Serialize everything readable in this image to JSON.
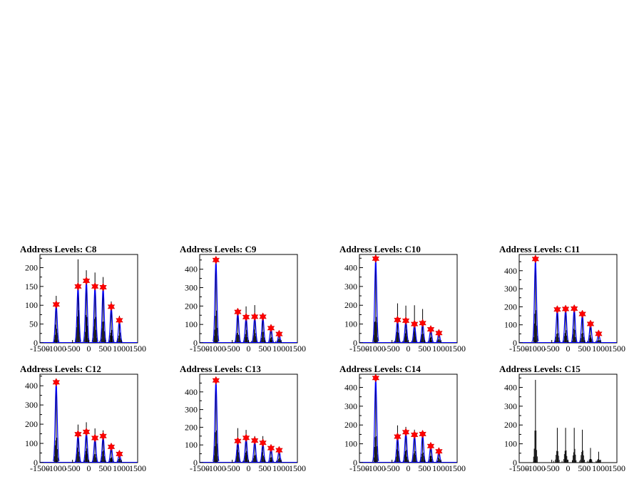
{
  "colors": {
    "histogram": "#000000",
    "background_fit": "#0000ff",
    "peak_marker": "#ff0000"
  },
  "chart_data": [
    {
      "type": "histogram",
      "title": "Address Levels: C8",
      "xlim": [
        -1500,
        1500
      ],
      "ylim": [
        0,
        235
      ],
      "xticks": [
        -1500,
        -1000,
        -500,
        0,
        500,
        1000,
        1500
      ],
      "yticks": [
        0,
        50,
        100,
        150,
        200
      ],
      "peaks": [
        {
          "x": -1000,
          "y": 102
        },
        {
          "x": -330,
          "y": 150
        },
        {
          "x": -75,
          "y": 165
        },
        {
          "x": 190,
          "y": 150
        },
        {
          "x": 440,
          "y": 148
        },
        {
          "x": 690,
          "y": 96
        },
        {
          "x": 940,
          "y": 60
        }
      ],
      "spikes": [
        {
          "x": -1000,
          "y": 125
        },
        {
          "x": -330,
          "y": 222
        },
        {
          "x": -75,
          "y": 193
        },
        {
          "x": 190,
          "y": 187
        },
        {
          "x": 440,
          "y": 175
        },
        {
          "x": 690,
          "y": 110
        },
        {
          "x": 940,
          "y": 72
        }
      ],
      "has_fit": true
    },
    {
      "type": "histogram",
      "title": "Address Levels: C9",
      "xlim": [
        -1500,
        1500
      ],
      "ylim": [
        0,
        480
      ],
      "xticks": [
        -1500,
        -1000,
        -500,
        0,
        500,
        1000,
        1500
      ],
      "yticks": [
        0,
        100,
        200,
        300,
        400
      ],
      "peaks": [
        {
          "x": -1000,
          "y": 450
        },
        {
          "x": -330,
          "y": 168
        },
        {
          "x": -75,
          "y": 140
        },
        {
          "x": 190,
          "y": 142
        },
        {
          "x": 440,
          "y": 142
        },
        {
          "x": 690,
          "y": 80
        },
        {
          "x": 940,
          "y": 48
        }
      ],
      "spikes": [
        {
          "x": -1000,
          "y": 458
        },
        {
          "x": -330,
          "y": 182
        },
        {
          "x": -75,
          "y": 198
        },
        {
          "x": 190,
          "y": 205
        },
        {
          "x": 440,
          "y": 160
        },
        {
          "x": 690,
          "y": 88
        },
        {
          "x": 940,
          "y": 58
        }
      ],
      "has_fit": true
    },
    {
      "type": "histogram",
      "title": "Address Levels: C10",
      "xlim": [
        -1500,
        1500
      ],
      "ylim": [
        0,
        470
      ],
      "xticks": [
        -1500,
        -1000,
        -500,
        0,
        500,
        1000,
        1500
      ],
      "yticks": [
        0,
        100,
        200,
        300,
        400
      ],
      "peaks": [
        {
          "x": -1000,
          "y": 448
        },
        {
          "x": -330,
          "y": 122
        },
        {
          "x": -75,
          "y": 118
        },
        {
          "x": 190,
          "y": 100
        },
        {
          "x": 440,
          "y": 105
        },
        {
          "x": 690,
          "y": 72
        },
        {
          "x": 940,
          "y": 52
        }
      ],
      "spikes": [
        {
          "x": -1000,
          "y": 455
        },
        {
          "x": -330,
          "y": 210
        },
        {
          "x": -75,
          "y": 198
        },
        {
          "x": 190,
          "y": 200
        },
        {
          "x": 440,
          "y": 180
        },
        {
          "x": 690,
          "y": 82
        },
        {
          "x": 940,
          "y": 60
        }
      ],
      "has_fit": true
    },
    {
      "type": "histogram",
      "title": "Address Levels: C11",
      "xlim": [
        -1500,
        1500
      ],
      "ylim": [
        0,
        490
      ],
      "xticks": [
        -1500,
        -1000,
        -500,
        0,
        500,
        1000,
        1500
      ],
      "yticks": [
        0,
        100,
        200,
        300,
        400
      ],
      "peaks": [
        {
          "x": -1000,
          "y": 465
        },
        {
          "x": -330,
          "y": 185
        },
        {
          "x": -75,
          "y": 188
        },
        {
          "x": 190,
          "y": 190
        },
        {
          "x": 440,
          "y": 160
        },
        {
          "x": 690,
          "y": 105
        },
        {
          "x": 940,
          "y": 50
        }
      ],
      "spikes": [
        {
          "x": -1000,
          "y": 472
        },
        {
          "x": -330,
          "y": 195
        },
        {
          "x": -75,
          "y": 198
        },
        {
          "x": 190,
          "y": 200
        },
        {
          "x": 440,
          "y": 170
        },
        {
          "x": 690,
          "y": 112
        },
        {
          "x": 940,
          "y": 58
        }
      ],
      "has_fit": true
    },
    {
      "type": "histogram",
      "title": "Address Levels: C12",
      "xlim": [
        -1500,
        1500
      ],
      "ylim": [
        0,
        460
      ],
      "xticks": [
        -1500,
        -1000,
        -500,
        0,
        500,
        1000,
        1500
      ],
      "yticks": [
        0,
        100,
        200,
        300,
        400
      ],
      "peaks": [
        {
          "x": -1000,
          "y": 418
        },
        {
          "x": -330,
          "y": 148
        },
        {
          "x": -75,
          "y": 160
        },
        {
          "x": 190,
          "y": 128
        },
        {
          "x": 440,
          "y": 138
        },
        {
          "x": 690,
          "y": 82
        },
        {
          "x": 940,
          "y": 45
        }
      ],
      "spikes": [
        {
          "x": -1000,
          "y": 425
        },
        {
          "x": -330,
          "y": 198
        },
        {
          "x": -75,
          "y": 210
        },
        {
          "x": 190,
          "y": 178
        },
        {
          "x": 440,
          "y": 168
        },
        {
          "x": 690,
          "y": 90
        },
        {
          "x": 940,
          "y": 55
        }
      ],
      "has_fit": true
    },
    {
      "type": "histogram",
      "title": "Address Levels: C13",
      "xlim": [
        -1500,
        1500
      ],
      "ylim": [
        0,
        500
      ],
      "xticks": [
        -1500,
        -1000,
        -500,
        0,
        500,
        1000,
        1500
      ],
      "yticks": [
        0,
        100,
        200,
        300,
        400
      ],
      "peaks": [
        {
          "x": -1000,
          "y": 465
        },
        {
          "x": -330,
          "y": 122
        },
        {
          "x": -75,
          "y": 140
        },
        {
          "x": 190,
          "y": 125
        },
        {
          "x": 440,
          "y": 112
        },
        {
          "x": 690,
          "y": 82
        },
        {
          "x": 940,
          "y": 70
        }
      ],
      "spikes": [
        {
          "x": -1000,
          "y": 472
        },
        {
          "x": -330,
          "y": 195
        },
        {
          "x": -75,
          "y": 185
        },
        {
          "x": 190,
          "y": 150
        },
        {
          "x": 440,
          "y": 150
        },
        {
          "x": 690,
          "y": 90
        },
        {
          "x": 940,
          "y": 78
        }
      ],
      "has_fit": true
    },
    {
      "type": "histogram",
      "title": "Address Levels: C14",
      "xlim": [
        -1500,
        1500
      ],
      "ylim": [
        0,
        470
      ],
      "xticks": [
        -1500,
        -1000,
        -500,
        0,
        500,
        1000,
        1500
      ],
      "yticks": [
        0,
        100,
        200,
        300,
        400
      ],
      "peaks": [
        {
          "x": -1000,
          "y": 450
        },
        {
          "x": -330,
          "y": 138
        },
        {
          "x": -75,
          "y": 162
        },
        {
          "x": 190,
          "y": 148
        },
        {
          "x": 440,
          "y": 152
        },
        {
          "x": 690,
          "y": 88
        },
        {
          "x": 940,
          "y": 60
        }
      ],
      "spikes": [
        {
          "x": -1000,
          "y": 458
        },
        {
          "x": -330,
          "y": 198
        },
        {
          "x": -75,
          "y": 190
        },
        {
          "x": 190,
          "y": 175
        },
        {
          "x": 440,
          "y": 168
        },
        {
          "x": 690,
          "y": 98
        },
        {
          "x": 940,
          "y": 68
        }
      ],
      "has_fit": true
    },
    {
      "type": "histogram",
      "title": "Address Levels: C15",
      "xlim": [
        -1500,
        1500
      ],
      "ylim": [
        0,
        470
      ],
      "xticks": [
        -1500,
        -1000,
        -500,
        0,
        500,
        1000,
        1500
      ],
      "yticks": [
        0,
        100,
        200,
        300,
        400
      ],
      "peaks": [],
      "spikes": [
        {
          "x": -1000,
          "y": 440
        },
        {
          "x": -330,
          "y": 185
        },
        {
          "x": -75,
          "y": 185
        },
        {
          "x": 190,
          "y": 185
        },
        {
          "x": 440,
          "y": 175
        },
        {
          "x": 690,
          "y": 78
        },
        {
          "x": 940,
          "y": 58
        }
      ],
      "has_fit": false
    }
  ]
}
